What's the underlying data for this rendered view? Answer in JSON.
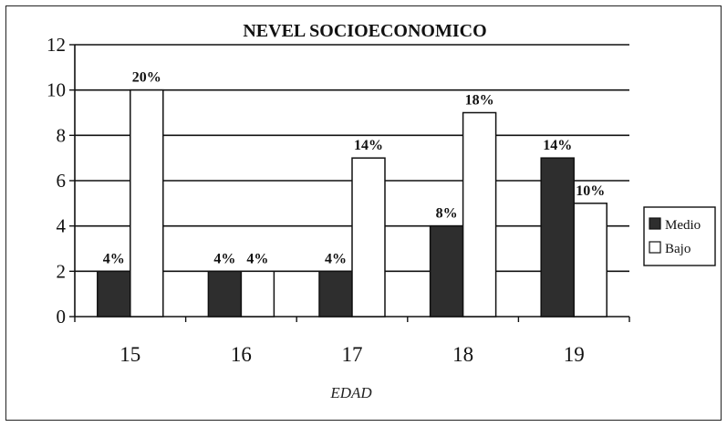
{
  "chart_data": {
    "type": "bar",
    "title": "NEVEL SOCIOECONOMICO",
    "xlabel": "EDAD",
    "ylabel": "",
    "categories": [
      "15",
      "16",
      "17",
      "18",
      "19"
    ],
    "ylim": [
      0,
      12
    ],
    "yticks": [
      0,
      2,
      4,
      6,
      8,
      10,
      12
    ],
    "grid": true,
    "legend_position": "right",
    "series": [
      {
        "name": "Medio",
        "color": "#2e2e2e",
        "values": [
          2,
          2,
          2,
          4,
          7
        ],
        "labels": [
          "4%",
          "4%",
          "4%",
          "8%",
          "14%"
        ]
      },
      {
        "name": "Bajo",
        "color": "#ffffff",
        "values": [
          10,
          2,
          7,
          9,
          5
        ],
        "labels": [
          "20%",
          "4%",
          "14%",
          "18%",
          "10%"
        ]
      }
    ]
  }
}
